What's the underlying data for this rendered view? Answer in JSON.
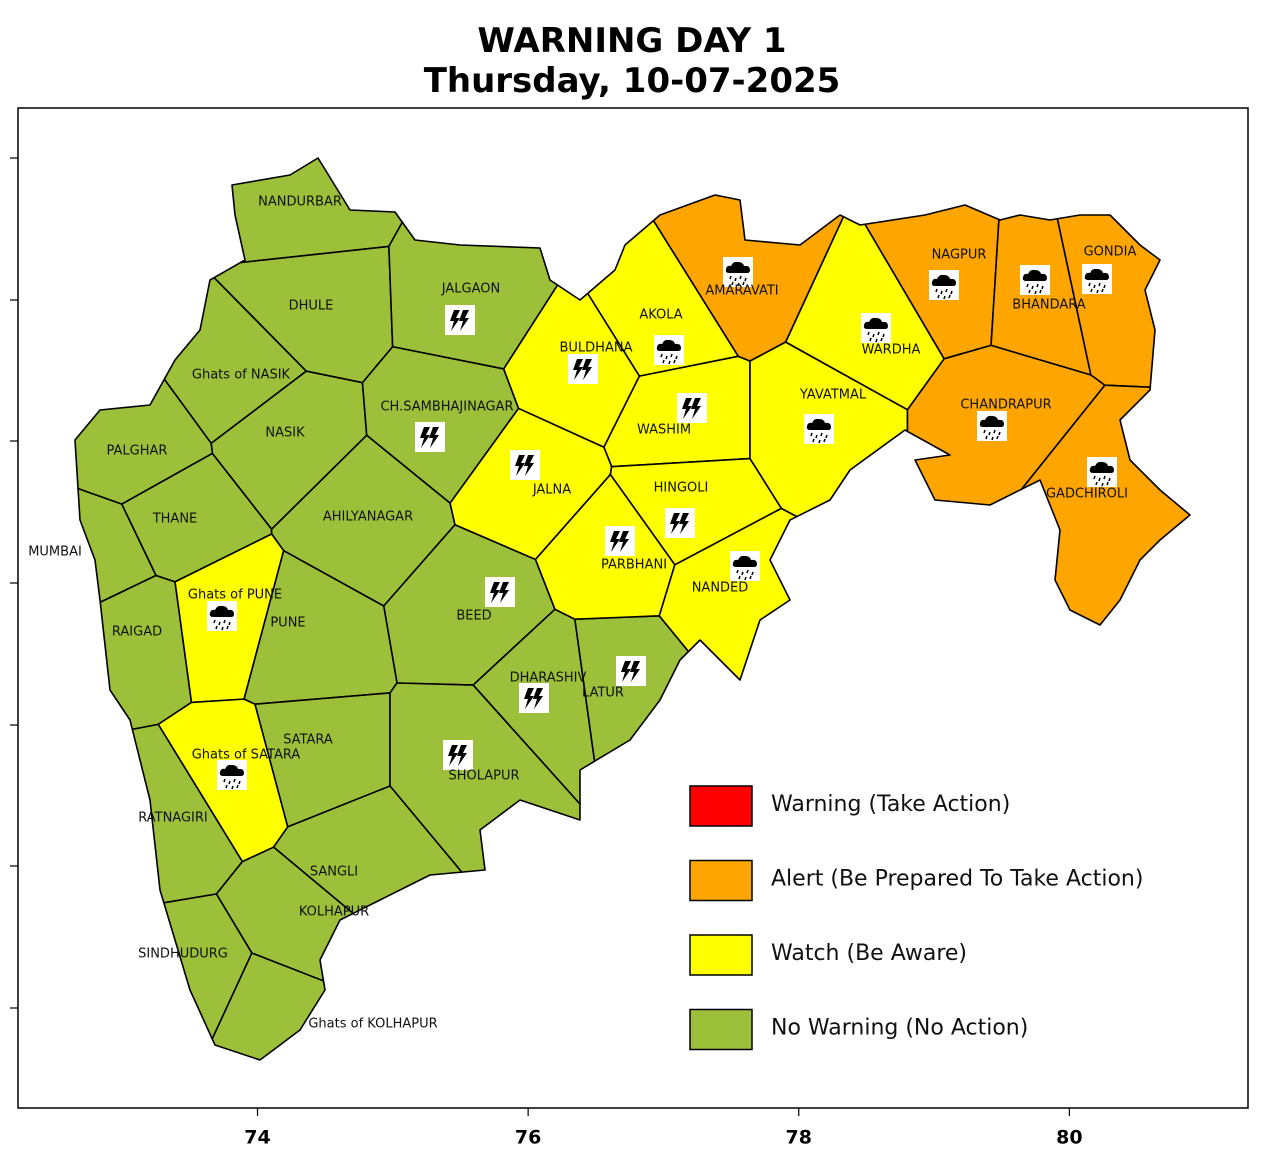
{
  "title": "WARNING DAY 1",
  "subtitle": "Thursday, 10-07-2025",
  "xlim": [
    72.23,
    81.32
  ],
  "xticks": [
    74,
    76,
    78,
    80
  ],
  "legend": [
    {
      "label": "Warning (Take Action)",
      "color": "#ff0000"
    },
    {
      "label": "Alert (Be Prepared To Take Action)",
      "color": "#ffa500"
    },
    {
      "label": "Watch (Be Aware)",
      "color": "#ffff00"
    },
    {
      "label": "No Warning (No Action)",
      "color": "#9dc03a"
    }
  ],
  "districts": [
    {
      "name": "NANDURBAR",
      "color": "#9dc03a"
    },
    {
      "name": "DHULE",
      "color": "#9dc03a"
    },
    {
      "name": "JALGAON",
      "color": "#9dc03a",
      "icon": "thunderstorm"
    },
    {
      "name": "Ghats of NASIK",
      "color": "#9dc03a"
    },
    {
      "name": "NASIK",
      "color": "#9dc03a"
    },
    {
      "name": "PALGHAR",
      "color": "#9dc03a"
    },
    {
      "name": "THANE",
      "color": "#9dc03a"
    },
    {
      "name": "MUMBAI",
      "color": "#9dc03a"
    },
    {
      "name": "CH.SAMBHAJINAGAR",
      "color": "#9dc03a",
      "icon": "thunderstorm"
    },
    {
      "name": "AHILYANAGAR",
      "color": "#9dc03a"
    },
    {
      "name": "BEED",
      "color": "#9dc03a",
      "icon": "thunderstorm"
    },
    {
      "name": "Ghats of PUNE",
      "color": "#ffff00",
      "icon": "rain"
    },
    {
      "name": "PUNE",
      "color": "#9dc03a"
    },
    {
      "name": "RAIGAD",
      "color": "#9dc03a"
    },
    {
      "name": "DHARASHIV",
      "color": "#9dc03a",
      "icon": "thunderstorm"
    },
    {
      "name": "LATUR",
      "color": "#9dc03a",
      "icon": "thunderstorm"
    },
    {
      "name": "SATARA",
      "color": "#9dc03a"
    },
    {
      "name": "Ghats of SATARA",
      "color": "#ffff00",
      "icon": "rain"
    },
    {
      "name": "SHOLAPUR",
      "color": "#9dc03a",
      "icon": "thunderstorm"
    },
    {
      "name": "RATNAGIRI",
      "color": "#9dc03a"
    },
    {
      "name": "SANGLI",
      "color": "#9dc03a"
    },
    {
      "name": "KOLHAPUR",
      "color": "#9dc03a"
    },
    {
      "name": "SINDHUDURG",
      "color": "#9dc03a"
    },
    {
      "name": "Ghats of KOLHAPUR",
      "color": "#9dc03a"
    },
    {
      "name": "BULDHANA",
      "color": "#ffff00",
      "icon": "thunderstorm"
    },
    {
      "name": "AKOLA",
      "color": "#ffff00",
      "icon": "rain"
    },
    {
      "name": "WASHIM",
      "color": "#ffff00",
      "icon": "thunderstorm"
    },
    {
      "name": "JALNA",
      "color": "#ffff00",
      "icon": "thunderstorm"
    },
    {
      "name": "HINGOLI",
      "color": "#ffff00",
      "icon": "thunderstorm"
    },
    {
      "name": "PARBHANI",
      "color": "#ffff00",
      "icon": "thunderstorm"
    },
    {
      "name": "NANDED",
      "color": "#ffff00",
      "icon": "rain"
    },
    {
      "name": "YAVATMAL",
      "color": "#ffff00",
      "icon": "rain"
    },
    {
      "name": "WARDHA",
      "color": "#ffff00",
      "icon": "rain"
    },
    {
      "name": "AMARAVATI",
      "color": "#ffa500",
      "icon": "rain"
    },
    {
      "name": "NAGPUR",
      "color": "#ffa500",
      "icon": "rain"
    },
    {
      "name": "BHANDARA",
      "color": "#ffa500",
      "icon": "rain"
    },
    {
      "name": "GONDIA",
      "color": "#ffa500",
      "icon": "rain"
    },
    {
      "name": "CHANDRAPUR",
      "color": "#ffa500",
      "icon": "rain"
    },
    {
      "name": "GADCHIROLI",
      "color": "#ffa500",
      "icon": "rain"
    }
  ]
}
